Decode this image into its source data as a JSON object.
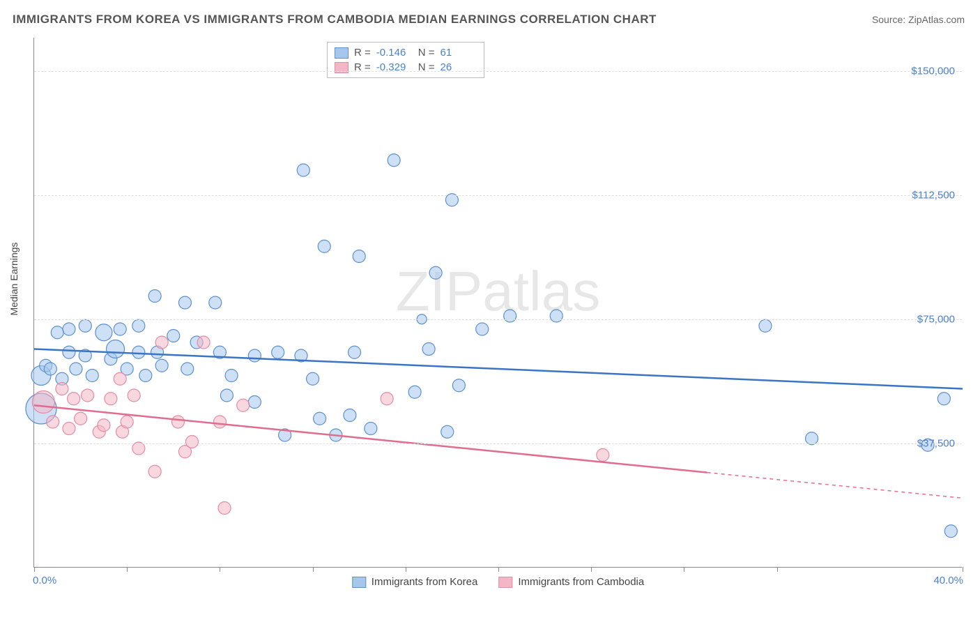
{
  "title": "IMMIGRANTS FROM KOREA VS IMMIGRANTS FROM CAMBODIA MEDIAN EARNINGS CORRELATION CHART",
  "source": "Source: ZipAtlas.com",
  "watermark": "ZIPatlas",
  "ylabel": "Median Earnings",
  "chart": {
    "type": "scatter",
    "xlim": [
      0,
      40
    ],
    "ylim": [
      0,
      160000
    ],
    "x_axis_label_left": "0.0%",
    "x_axis_label_right": "40.0%",
    "xtick_positions_pct": [
      0,
      10,
      20,
      30,
      40,
      50,
      60,
      70,
      80,
      100
    ],
    "y_gridlines": [
      37500,
      75000,
      112500,
      150000
    ],
    "y_tick_labels": [
      "$37,500",
      "$75,000",
      "$112,500",
      "$150,000"
    ],
    "grid_color": "#dddddd",
    "axis_color": "#888888",
    "label_color": "#4a7fd6",
    "title_color": "#555555",
    "title_fontsize": 17,
    "label_fontsize": 15,
    "background_color": "#ffffff"
  },
  "series": [
    {
      "name": "Immigrants from Korea",
      "fill_color": "#a6c6ec",
      "stroke_color": "#5b8fd0",
      "fill_opacity": 0.55,
      "line_color": "#3b74c4",
      "r_value": "-0.146",
      "n_value": "61",
      "trend": {
        "y_at_x0": 66000,
        "y_at_x40": 54000,
        "solid_until_x": 40
      },
      "marker_radius_base": 9,
      "points": [
        {
          "x": 0.3,
          "y": 58000,
          "r": 14
        },
        {
          "x": 0.3,
          "y": 48000,
          "r": 22
        },
        {
          "x": 0.5,
          "y": 61000
        },
        {
          "x": 0.7,
          "y": 60000
        },
        {
          "x": 1.0,
          "y": 71000
        },
        {
          "x": 1.2,
          "y": 57000
        },
        {
          "x": 1.5,
          "y": 65000
        },
        {
          "x": 1.5,
          "y": 72000
        },
        {
          "x": 1.8,
          "y": 60000
        },
        {
          "x": 2.2,
          "y": 64000
        },
        {
          "x": 2.2,
          "y": 73000
        },
        {
          "x": 2.5,
          "y": 58000
        },
        {
          "x": 3.0,
          "y": 71000,
          "r": 12
        },
        {
          "x": 3.3,
          "y": 63000
        },
        {
          "x": 3.5,
          "y": 66000,
          "r": 13
        },
        {
          "x": 3.7,
          "y": 72000
        },
        {
          "x": 4.0,
          "y": 60000
        },
        {
          "x": 4.5,
          "y": 65000
        },
        {
          "x": 4.5,
          "y": 73000
        },
        {
          "x": 4.8,
          "y": 58000
        },
        {
          "x": 5.2,
          "y": 82000
        },
        {
          "x": 5.3,
          "y": 65000
        },
        {
          "x": 5.5,
          "y": 61000
        },
        {
          "x": 6.0,
          "y": 70000
        },
        {
          "x": 6.5,
          "y": 80000
        },
        {
          "x": 6.6,
          "y": 60000
        },
        {
          "x": 7.0,
          "y": 68000
        },
        {
          "x": 7.8,
          "y": 80000
        },
        {
          "x": 8.0,
          "y": 65000
        },
        {
          "x": 8.3,
          "y": 52000
        },
        {
          "x": 8.5,
          "y": 58000
        },
        {
          "x": 9.5,
          "y": 50000
        },
        {
          "x": 9.5,
          "y": 64000
        },
        {
          "x": 10.5,
          "y": 65000
        },
        {
          "x": 10.8,
          "y": 40000
        },
        {
          "x": 11.5,
          "y": 64000
        },
        {
          "x": 11.6,
          "y": 120000
        },
        {
          "x": 12.0,
          "y": 57000
        },
        {
          "x": 12.3,
          "y": 45000
        },
        {
          "x": 12.5,
          "y": 97000
        },
        {
          "x": 13.0,
          "y": 40000
        },
        {
          "x": 13.6,
          "y": 46000
        },
        {
          "x": 13.8,
          "y": 65000
        },
        {
          "x": 14.0,
          "y": 94000
        },
        {
          "x": 14.5,
          "y": 42000
        },
        {
          "x": 15.5,
          "y": 123000
        },
        {
          "x": 16.4,
          "y": 53000
        },
        {
          "x": 16.7,
          "y": 75000,
          "r": 7
        },
        {
          "x": 17.0,
          "y": 66000
        },
        {
          "x": 17.3,
          "y": 89000
        },
        {
          "x": 17.8,
          "y": 41000
        },
        {
          "x": 18.0,
          "y": 111000
        },
        {
          "x": 18.3,
          "y": 55000
        },
        {
          "x": 19.3,
          "y": 72000
        },
        {
          "x": 20.5,
          "y": 76000
        },
        {
          "x": 22.5,
          "y": 76000
        },
        {
          "x": 31.5,
          "y": 73000
        },
        {
          "x": 33.5,
          "y": 39000
        },
        {
          "x": 38.5,
          "y": 37000
        },
        {
          "x": 39.2,
          "y": 51000
        },
        {
          "x": 39.5,
          "y": 11000
        }
      ]
    },
    {
      "name": "Immigrants from Cambodia",
      "fill_color": "#f3b6c5",
      "stroke_color": "#e48aa4",
      "fill_opacity": 0.55,
      "line_color": "#e06d8e",
      "r_value": "-0.329",
      "n_value": "26",
      "trend": {
        "y_at_x0": 49000,
        "y_at_x40": 21000,
        "solid_until_x": 29
      },
      "marker_radius_base": 9,
      "points": [
        {
          "x": 0.4,
          "y": 50000,
          "r": 16
        },
        {
          "x": 0.8,
          "y": 44000
        },
        {
          "x": 1.2,
          "y": 54000
        },
        {
          "x": 1.5,
          "y": 42000
        },
        {
          "x": 1.7,
          "y": 51000
        },
        {
          "x": 2.0,
          "y": 45000
        },
        {
          "x": 2.3,
          "y": 52000
        },
        {
          "x": 2.8,
          "y": 41000
        },
        {
          "x": 3.0,
          "y": 43000
        },
        {
          "x": 3.3,
          "y": 51000
        },
        {
          "x": 3.7,
          "y": 57000
        },
        {
          "x": 3.8,
          "y": 41000
        },
        {
          "x": 4.0,
          "y": 44000
        },
        {
          "x": 4.3,
          "y": 52000
        },
        {
          "x": 4.5,
          "y": 36000
        },
        {
          "x": 5.2,
          "y": 29000
        },
        {
          "x": 5.5,
          "y": 68000
        },
        {
          "x": 6.2,
          "y": 44000
        },
        {
          "x": 6.5,
          "y": 35000
        },
        {
          "x": 6.8,
          "y": 38000
        },
        {
          "x": 7.3,
          "y": 68000
        },
        {
          "x": 8.0,
          "y": 44000
        },
        {
          "x": 8.2,
          "y": 18000
        },
        {
          "x": 9.0,
          "y": 49000
        },
        {
          "x": 15.2,
          "y": 51000
        },
        {
          "x": 24.5,
          "y": 34000
        }
      ]
    }
  ],
  "legend_top": {
    "r_label": "R =",
    "n_label": "N ="
  },
  "legend_bottom_labels": [
    "Immigrants from Korea",
    "Immigrants from Cambodia"
  ]
}
